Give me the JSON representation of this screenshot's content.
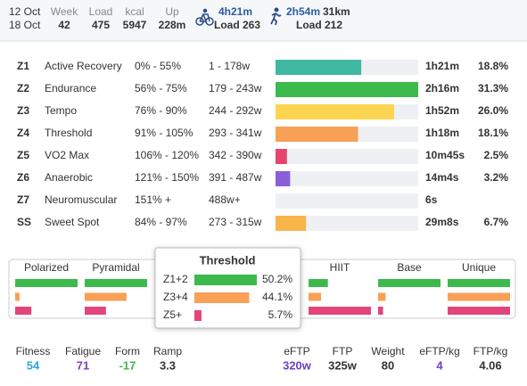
{
  "header": {
    "dates": [
      "12 Oct",
      "18 Oct"
    ],
    "stats": [
      {
        "label": "Week",
        "value": "42"
      },
      {
        "label": "Load",
        "value": "475"
      },
      {
        "label": "kcal",
        "value": "5947"
      },
      {
        "label": "Up",
        "value": "228m"
      }
    ],
    "ride": {
      "time": "4h21m",
      "load": "Load 263"
    },
    "run": {
      "time": "2h54m",
      "distance": "31km",
      "load": "Load 212"
    }
  },
  "zones": [
    {
      "id": "Z1",
      "name": "Active Recovery",
      "range": "0% - 55%",
      "watts": "1 - 178w",
      "time": "1h21m",
      "percent": 18.8,
      "percent_label": "18.8%",
      "color": "#40b8a2"
    },
    {
      "id": "Z2",
      "name": "Endurance",
      "range": "56% - 75%",
      "watts": "179 - 243w",
      "time": "2h16m",
      "percent": 31.3,
      "percent_label": "31.3%",
      "color": "#3dba4c"
    },
    {
      "id": "Z3",
      "name": "Tempo",
      "range": "76% - 90%",
      "watts": "244 - 292w",
      "time": "1h52m",
      "percent": 26.0,
      "percent_label": "26.0%",
      "color": "#fcd44f"
    },
    {
      "id": "Z4",
      "name": "Threshold",
      "range": "91% - 105%",
      "watts": "293 - 341w",
      "time": "1h18m",
      "percent": 18.1,
      "percent_label": "18.1%",
      "color": "#f8a055"
    },
    {
      "id": "Z5",
      "name": "VO2 Max",
      "range": "106% - 120%",
      "watts": "342 - 390w",
      "time": "10m45s",
      "percent": 2.5,
      "percent_label": "2.5%",
      "color": "#e8436d"
    },
    {
      "id": "Z6",
      "name": "Anaerobic",
      "range": "121% - 150%",
      "watts": "391 - 487w",
      "time": "14m4s",
      "percent": 3.2,
      "percent_label": "3.2%",
      "color": "#8a5ed8"
    },
    {
      "id": "Z7",
      "name": "Neuromuscular",
      "range": "151% +",
      "watts": "488w+",
      "time": "6s",
      "color": "#555555"
    },
    {
      "id": "SS",
      "name": "Sweet Spot",
      "range": "84% - 97%",
      "watts": "273 - 315w",
      "time": "29m8s",
      "percent": 6.7,
      "percent_label": "6.7%",
      "color": "#f7b54a"
    }
  ],
  "distribution": {
    "bar_colors": [
      "#3dba4c",
      "#f8a055",
      "#e3457a"
    ],
    "models": [
      {
        "name": "Polarized",
        "bars": [
          1.0,
          0.07,
          0.26
        ]
      },
      {
        "name": "Pyramidal",
        "bars": [
          1.0,
          0.67,
          0.34
        ]
      },
      {
        "name": "HIIT",
        "bars": [
          0.31,
          0.2,
          1.0
        ]
      },
      {
        "name": "Base",
        "bars": [
          1.0,
          0.12,
          0.08
        ]
      },
      {
        "name": "Unique",
        "bars": [
          1.0,
          1.0,
          1.0
        ]
      }
    ],
    "popup": {
      "title": "Threshold",
      "rows": [
        {
          "label": "Z1+2",
          "value": 50.2,
          "value_label": "50.2%"
        },
        {
          "label": "Z3+4",
          "value": 44.1,
          "value_label": "44.1%"
        },
        {
          "label": "Z5+",
          "value": 5.7,
          "value_label": "5.7%"
        }
      ]
    }
  },
  "footer": [
    {
      "label": "Fitness",
      "value": "54",
      "color": "#2fa6dc"
    },
    {
      "label": "Fatigue",
      "value": "71",
      "color": "#7b3fb5"
    },
    {
      "label": "Form",
      "value": "-17",
      "color": "#3db54a"
    },
    {
      "label": "Ramp",
      "value": "3.3",
      "color": "#333333"
    },
    {
      "label": "eFTP",
      "value": "320w",
      "color": "#6c3fc6"
    },
    {
      "label": "FTP",
      "value": "325w",
      "color": "#333333"
    },
    {
      "label": "Weight",
      "value": "80",
      "color": "#333333"
    },
    {
      "label": "eFTP/kg",
      "value": "4",
      "color": "#6c3fc6"
    },
    {
      "label": "FTP/kg",
      "value": "4.06",
      "color": "#333333"
    }
  ]
}
